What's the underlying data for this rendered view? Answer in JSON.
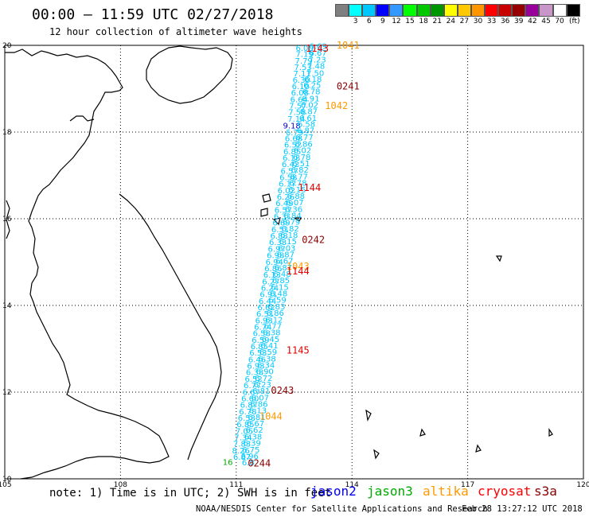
{
  "header": {
    "title": "00:00 – 11:59 UTC 02/27/2018",
    "subtitle": "12 hour collection of altimeter wave heights"
  },
  "color_scale": {
    "unit": "(ft)",
    "bins": [
      {
        "label": "",
        "color": "#7f7f7f"
      },
      {
        "label": "3",
        "color": "#00ffff"
      },
      {
        "label": "6",
        "color": "#00c8ff"
      },
      {
        "label": "9",
        "color": "#0000ff"
      },
      {
        "label": "12",
        "color": "#3399ff"
      },
      {
        "label": "15",
        "color": "#00ff00"
      },
      {
        "label": "18",
        "color": "#00c800"
      },
      {
        "label": "21",
        "color": "#009600"
      },
      {
        "label": "24",
        "color": "#ffff00"
      },
      {
        "label": "27",
        "color": "#ffc800"
      },
      {
        "label": "30",
        "color": "#ff9600"
      },
      {
        "label": "33",
        "color": "#ff0000"
      },
      {
        "label": "36",
        "color": "#c80000"
      },
      {
        "label": "39",
        "color": "#960000"
      },
      {
        "label": "42",
        "color": "#990099"
      },
      {
        "label": "45",
        "color": "#c896c8"
      },
      {
        "label": "70",
        "color": "#ffffff"
      },
      {
        "label": "",
        "color": "#000000"
      }
    ]
  },
  "map": {
    "lon_min": 105,
    "lon_max": 120,
    "lat_min": 10,
    "lat_max": 20,
    "x_ticks": [
      "105",
      "108",
      "111",
      "114",
      "117",
      "120"
    ],
    "y_ticks": [
      "10",
      "12",
      "14",
      "16",
      "18",
      "20"
    ],
    "pass_labels": [
      {
        "text": "1041",
        "lon": 113.6,
        "lat": 19.93,
        "color": "#ff9900"
      },
      {
        "text": "1143",
        "lon": 112.8,
        "lat": 19.85,
        "color": "#e00000"
      },
      {
        "text": "0241",
        "lon": 113.6,
        "lat": 18.98,
        "color": "#8b0000"
      },
      {
        "text": "1042",
        "lon": 113.3,
        "lat": 18.53,
        "color": "#ff9900"
      },
      {
        "text": "1144",
        "lon": 112.6,
        "lat": 16.64,
        "color": "#e00000"
      },
      {
        "text": "0242",
        "lon": 112.7,
        "lat": 15.44,
        "color": "#8b0000"
      },
      {
        "text": "1043",
        "lon": 112.3,
        "lat": 14.83,
        "color": "#ff9900"
      },
      {
        "text": "1144",
        "lon": 112.3,
        "lat": 14.72,
        "color": "#e00000"
      },
      {
        "text": "1145",
        "lon": 112.3,
        "lat": 12.89,
        "color": "#e00000"
      },
      {
        "text": "0243",
        "lon": 111.9,
        "lat": 11.96,
        "color": "#8b0000"
      },
      {
        "text": "1044",
        "lon": 111.6,
        "lat": 11.37,
        "color": "#ff9900"
      },
      {
        "text": "0244",
        "lon": 111.3,
        "lat": 10.28,
        "color": "#8b0000"
      }
    ],
    "swh_track": [
      {
        "lon": 112.77,
        "lat": 19.87,
        "v": "6.00"
      },
      {
        "lon": 113.12,
        "lat": 19.92,
        "v": "6.69"
      },
      {
        "lon": 112.77,
        "lat": 19.73,
        "v": "7.19"
      },
      {
        "lon": 113.12,
        "lat": 19.76,
        "v": "6.67"
      },
      {
        "lon": 112.75,
        "lat": 19.58,
        "v": "7.79"
      },
      {
        "lon": 113.1,
        "lat": 19.61,
        "v": "7.23"
      },
      {
        "lon": 112.73,
        "lat": 19.43,
        "v": "7.53"
      },
      {
        "lon": 113.07,
        "lat": 19.46,
        "v": "7.48"
      },
      {
        "lon": 112.71,
        "lat": 19.28,
        "v": "7.11"
      },
      {
        "lon": 113.05,
        "lat": 19.29,
        "v": "7.50"
      },
      {
        "lon": 112.69,
        "lat": 19.14,
        "v": "6.30"
      },
      {
        "lon": 112.99,
        "lat": 19.16,
        "v": "6.18"
      },
      {
        "lon": 112.67,
        "lat": 18.99,
        "v": "6.10"
      },
      {
        "lon": 112.97,
        "lat": 19.02,
        "v": "6.25"
      },
      {
        "lon": 112.65,
        "lat": 18.84,
        "v": "6.08"
      },
      {
        "lon": 112.95,
        "lat": 18.87,
        "v": "6.78"
      },
      {
        "lon": 112.63,
        "lat": 18.69,
        "v": "6.64"
      },
      {
        "lon": 112.93,
        "lat": 18.71,
        "v": "6.91"
      },
      {
        "lon": 112.6,
        "lat": 18.54,
        "v": "7.57"
      },
      {
        "lon": 112.9,
        "lat": 18.56,
        "v": "6.02"
      },
      {
        "lon": 112.58,
        "lat": 18.39,
        "v": "7.58"
      },
      {
        "lon": 112.88,
        "lat": 18.41,
        "v": "6.87"
      },
      {
        "lon": 112.56,
        "lat": 18.24,
        "v": "7.14"
      },
      {
        "lon": 112.86,
        "lat": 18.26,
        "v": "6.61"
      },
      {
        "lon": 112.44,
        "lat": 18.08,
        "v": "9.18"
      },
      {
        "lon": 112.82,
        "lat": 18.12,
        "v": "6.58"
      },
      {
        "lon": 112.51,
        "lat": 17.93,
        "v": "6.79"
      },
      {
        "lon": 112.8,
        "lat": 17.97,
        "v": "6.87"
      },
      {
        "lon": 112.49,
        "lat": 17.79,
        "v": "6.68"
      },
      {
        "lon": 112.77,
        "lat": 17.82,
        "v": "6.77"
      },
      {
        "lon": 112.47,
        "lat": 17.64,
        "v": "6.52"
      },
      {
        "lon": 112.75,
        "lat": 17.66,
        "v": "6.86"
      },
      {
        "lon": 112.45,
        "lat": 17.49,
        "v": "6.85"
      },
      {
        "lon": 112.72,
        "lat": 17.51,
        "v": "6.02"
      },
      {
        "lon": 112.43,
        "lat": 17.34,
        "v": "6.18"
      },
      {
        "lon": 112.7,
        "lat": 17.36,
        "v": "6.78"
      },
      {
        "lon": 112.41,
        "lat": 17.19,
        "v": "6.42"
      },
      {
        "lon": 112.68,
        "lat": 17.21,
        "v": "6.51"
      },
      {
        "lon": 112.38,
        "lat": 17.04,
        "v": "6.57"
      },
      {
        "lon": 112.65,
        "lat": 17.06,
        "v": "6.82"
      },
      {
        "lon": 112.35,
        "lat": 16.89,
        "v": "6.58"
      },
      {
        "lon": 112.63,
        "lat": 16.91,
        "v": "6.77"
      },
      {
        "lon": 112.33,
        "lat": 16.74,
        "v": "6.17"
      },
      {
        "lon": 112.6,
        "lat": 16.76,
        "v": "6.78"
      },
      {
        "lon": 112.3,
        "lat": 16.59,
        "v": "6.02"
      },
      {
        "lon": 112.58,
        "lat": 16.61,
        "v": "6.15"
      },
      {
        "lon": 112.28,
        "lat": 16.44,
        "v": "6.26"
      },
      {
        "lon": 112.55,
        "lat": 16.46,
        "v": "6.88"
      },
      {
        "lon": 112.25,
        "lat": 16.29,
        "v": "6.49"
      },
      {
        "lon": 112.52,
        "lat": 16.31,
        "v": "6.07"
      },
      {
        "lon": 112.22,
        "lat": 16.14,
        "v": "6.57"
      },
      {
        "lon": 112.49,
        "lat": 16.16,
        "v": "6.36"
      },
      {
        "lon": 112.2,
        "lat": 15.99,
        "v": "6.31"
      },
      {
        "lon": 112.46,
        "lat": 16.01,
        "v": "6.84"
      },
      {
        "lon": 112.17,
        "lat": 15.84,
        "v": "6.69"
      },
      {
        "lon": 112.43,
        "lat": 15.86,
        "v": "6.79"
      },
      {
        "lon": 112.14,
        "lat": 15.69,
        "v": "6.51"
      },
      {
        "lon": 112.4,
        "lat": 15.71,
        "v": "6.82"
      },
      {
        "lon": 112.11,
        "lat": 15.54,
        "v": "6.88"
      },
      {
        "lon": 112.37,
        "lat": 15.56,
        "v": "6.18"
      },
      {
        "lon": 112.08,
        "lat": 15.39,
        "v": "6.33"
      },
      {
        "lon": 112.34,
        "lat": 15.41,
        "v": "6.15"
      },
      {
        "lon": 112.05,
        "lat": 15.24,
        "v": "6.97"
      },
      {
        "lon": 112.31,
        "lat": 15.26,
        "v": "6.03"
      },
      {
        "lon": 112.02,
        "lat": 15.09,
        "v": "6.98"
      },
      {
        "lon": 112.28,
        "lat": 15.11,
        "v": "6.87"
      },
      {
        "lon": 111.99,
        "lat": 14.94,
        "v": "6.94"
      },
      {
        "lon": 112.25,
        "lat": 14.96,
        "v": "6.67"
      },
      {
        "lon": 111.96,
        "lat": 14.79,
        "v": "6.86"
      },
      {
        "lon": 112.22,
        "lat": 14.81,
        "v": "6.87"
      },
      {
        "lon": 111.93,
        "lat": 14.64,
        "v": "6.13"
      },
      {
        "lon": 112.19,
        "lat": 14.66,
        "v": "6.48"
      },
      {
        "lon": 111.9,
        "lat": 14.49,
        "v": "6.27"
      },
      {
        "lon": 112.16,
        "lat": 14.51,
        "v": "6.85"
      },
      {
        "lon": 111.87,
        "lat": 14.34,
        "v": "6.24"
      },
      {
        "lon": 112.13,
        "lat": 14.36,
        "v": "6.15"
      },
      {
        "lon": 111.84,
        "lat": 14.19,
        "v": "6.91"
      },
      {
        "lon": 112.1,
        "lat": 14.21,
        "v": "6.48"
      },
      {
        "lon": 111.81,
        "lat": 14.04,
        "v": "6.44"
      },
      {
        "lon": 112.07,
        "lat": 14.06,
        "v": "6.59"
      },
      {
        "lon": 111.78,
        "lat": 13.89,
        "v": "6.62"
      },
      {
        "lon": 112.04,
        "lat": 13.91,
        "v": "6.83"
      },
      {
        "lon": 111.75,
        "lat": 13.74,
        "v": "6.51"
      },
      {
        "lon": 112.01,
        "lat": 13.76,
        "v": "6.86"
      },
      {
        "lon": 111.72,
        "lat": 13.59,
        "v": "6.93"
      },
      {
        "lon": 111.98,
        "lat": 13.61,
        "v": "6.12"
      },
      {
        "lon": 111.69,
        "lat": 13.44,
        "v": "6.74"
      },
      {
        "lon": 111.95,
        "lat": 13.46,
        "v": "6.77"
      },
      {
        "lon": 111.66,
        "lat": 13.29,
        "v": "6.58"
      },
      {
        "lon": 111.92,
        "lat": 13.31,
        "v": "6.38"
      },
      {
        "lon": 111.63,
        "lat": 13.14,
        "v": "6.59"
      },
      {
        "lon": 111.89,
        "lat": 13.16,
        "v": "6.45"
      },
      {
        "lon": 111.6,
        "lat": 12.99,
        "v": "6.85"
      },
      {
        "lon": 111.86,
        "lat": 13.01,
        "v": "6.41"
      },
      {
        "lon": 111.57,
        "lat": 12.84,
        "v": "6.53"
      },
      {
        "lon": 111.83,
        "lat": 12.86,
        "v": "6.59"
      },
      {
        "lon": 111.54,
        "lat": 12.69,
        "v": "6.46"
      },
      {
        "lon": 111.8,
        "lat": 12.71,
        "v": "6.38"
      },
      {
        "lon": 111.51,
        "lat": 12.54,
        "v": "6.93"
      },
      {
        "lon": 111.77,
        "lat": 12.56,
        "v": "6.34"
      },
      {
        "lon": 111.48,
        "lat": 12.39,
        "v": "6.38"
      },
      {
        "lon": 111.74,
        "lat": 12.41,
        "v": "6.90"
      },
      {
        "lon": 111.45,
        "lat": 12.24,
        "v": "6.52"
      },
      {
        "lon": 111.71,
        "lat": 12.26,
        "v": "6.72"
      },
      {
        "lon": 111.42,
        "lat": 12.09,
        "v": "6.77"
      },
      {
        "lon": 111.68,
        "lat": 12.11,
        "v": "6.23"
      },
      {
        "lon": 111.39,
        "lat": 11.94,
        "v": "6.67"
      },
      {
        "lon": 111.65,
        "lat": 11.96,
        "v": "6.81"
      },
      {
        "lon": 111.36,
        "lat": 11.79,
        "v": "6.60"
      },
      {
        "lon": 111.62,
        "lat": 11.81,
        "v": "6.07"
      },
      {
        "lon": 111.33,
        "lat": 11.64,
        "v": "6.87"
      },
      {
        "lon": 111.59,
        "lat": 11.66,
        "v": "6.86"
      },
      {
        "lon": 111.3,
        "lat": 11.49,
        "v": "6.78"
      },
      {
        "lon": 111.56,
        "lat": 11.51,
        "v": "6.13"
      },
      {
        "lon": 111.27,
        "lat": 11.34,
        "v": "6.58"
      },
      {
        "lon": 111.53,
        "lat": 11.36,
        "v": "6.81"
      },
      {
        "lon": 111.24,
        "lat": 11.19,
        "v": "6.85"
      },
      {
        "lon": 111.5,
        "lat": 11.21,
        "v": "6.67"
      },
      {
        "lon": 111.21,
        "lat": 11.04,
        "v": "7.05"
      },
      {
        "lon": 111.47,
        "lat": 11.06,
        "v": "6.62"
      },
      {
        "lon": 111.18,
        "lat": 10.89,
        "v": "7.34"
      },
      {
        "lon": 111.44,
        "lat": 10.91,
        "v": "6.38"
      },
      {
        "lon": 111.15,
        "lat": 10.74,
        "v": "7.83"
      },
      {
        "lon": 111.41,
        "lat": 10.76,
        "v": "6.39"
      },
      {
        "lon": 111.12,
        "lat": 10.59,
        "v": "8.26"
      },
      {
        "lon": 111.38,
        "lat": 10.61,
        "v": "6.75"
      },
      {
        "lon": 111.35,
        "lat": 10.46,
        "v": "6.96"
      },
      {
        "lon": 111.15,
        "lat": 10.44,
        "v": "6.87"
      },
      {
        "lon": 111.31,
        "lat": 10.31,
        "v": "6.8"
      }
    ],
    "jason3_points": [
      {
        "lon": 110.78,
        "lat": 10.32,
        "v": "16"
      }
    ]
  },
  "footer": {
    "note": "note: 1) Time is in UTC; 2) SWH is in feet",
    "legend": [
      {
        "label": "jason2",
        "color": "#0000ee"
      },
      {
        "label": "jason3",
        "color": "#00aa00"
      },
      {
        "label": "altika",
        "color": "#ff9900"
      },
      {
        "label": "cryosat",
        "color": "#ff0000"
      },
      {
        "label": "s3a",
        "color": "#8b0000"
      }
    ],
    "credit": "NOAA/NESDIS Center for Satellite Applications and Research",
    "generated": "Feb 28 13:27:12 UTC 2018"
  }
}
